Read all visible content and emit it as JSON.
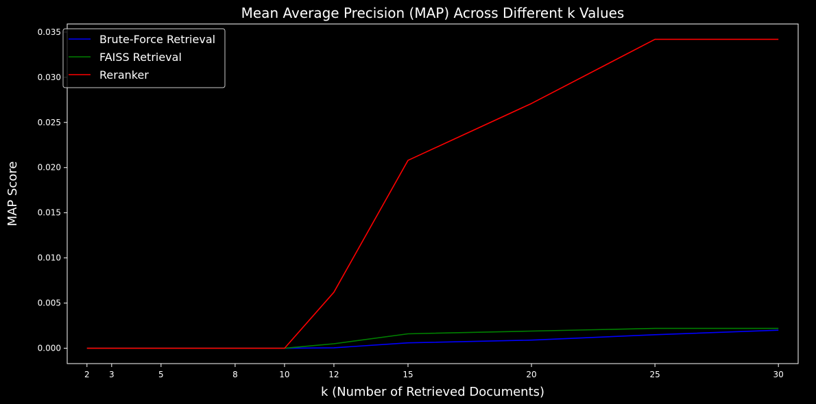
{
  "chart_data": {
    "type": "line",
    "title": "Mean Average Precision (MAP) Across Different k Values",
    "xlabel": "k (Number of Retrieved Documents)",
    "ylabel": "MAP Score",
    "x": [
      2,
      3,
      5,
      8,
      10,
      12,
      15,
      20,
      25,
      30
    ],
    "x_ticks": [
      "2",
      "3",
      "5",
      "8",
      "10",
      "12",
      "15",
      "20",
      "25",
      "30"
    ],
    "y_ticks": [
      "0.000",
      "0.005",
      "0.010",
      "0.015",
      "0.020",
      "0.025",
      "0.030",
      "0.035"
    ],
    "xlim": [
      1.2,
      30.8
    ],
    "ylim": [
      -0.0017,
      0.0359
    ],
    "grid": false,
    "legend_position": "upper-left",
    "series": [
      {
        "name": "Brute-Force Retrieval",
        "color": "#0000ff",
        "values": [
          0,
          0,
          0,
          0,
          0,
          5e-05,
          0.0006,
          0.0009,
          0.0015,
          0.002
        ]
      },
      {
        "name": "FAISS Retrieval",
        "color": "#008000",
        "values": [
          0,
          0,
          0,
          0,
          0,
          0.0005,
          0.0016,
          0.0019,
          0.0022,
          0.0022
        ]
      },
      {
        "name": "Reranker",
        "color": "#ff0000",
        "values": [
          0,
          0,
          0,
          0,
          0,
          0.0062,
          0.0208,
          0.0271,
          0.0342,
          0.0342
        ]
      }
    ]
  }
}
